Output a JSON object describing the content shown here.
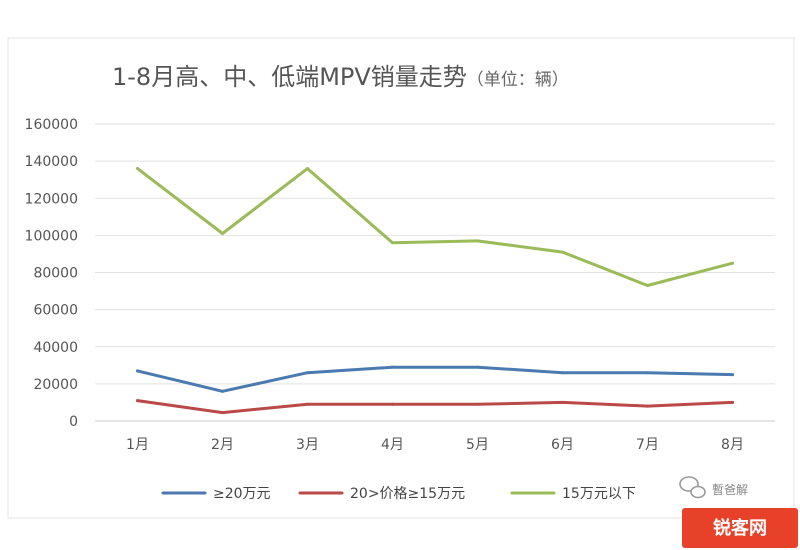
{
  "chart_data": {
    "type": "line",
    "title": "1-8月高、中、低端MPV销量走势",
    "title_unit": "（单位：辆）",
    "categories": [
      "1月",
      "2月",
      "3月",
      "4月",
      "5月",
      "6月",
      "7月",
      "8月"
    ],
    "ylim": [
      0,
      160000
    ],
    "yticks": [
      0,
      20000,
      40000,
      60000,
      80000,
      100000,
      120000,
      140000,
      160000
    ],
    "ytick_labels": [
      "0",
      "20000",
      "40000",
      "60000",
      "80000",
      "100000",
      "120000",
      "140000",
      "160000"
    ],
    "grid": true,
    "legend_position": "bottom",
    "series": [
      {
        "name": "≥20万元",
        "color": "#4a7ab0",
        "values": [
          27000,
          16000,
          26000,
          29000,
          29000,
          26000,
          26000,
          25000
        ]
      },
      {
        "name": "20>价格≥15万元",
        "color": "#b94a48",
        "values": [
          11000,
          4500,
          9000,
          9000,
          9000,
          10000,
          8000,
          10000
        ]
      },
      {
        "name": "15万元以下",
        "color": "#9bbb59",
        "values": [
          136000,
          101000,
          136000,
          96000,
          97000,
          91000,
          73000,
          85000
        ]
      }
    ]
  },
  "watermark": {
    "text": "暫爸解",
    "icon": "wechat-icon"
  },
  "brand": {
    "text": "锐客网",
    "bg_color": "#e8412a"
  }
}
